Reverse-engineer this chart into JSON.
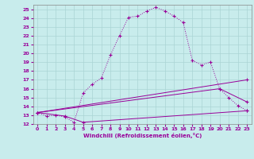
{
  "xlabel": "Windchill (Refroidissement éolien,°C)",
  "bg_color": "#c8ecec",
  "grid_color": "#aad4d4",
  "line_color": "#990099",
  "xlim": [
    -0.5,
    23.5
  ],
  "ylim": [
    12,
    25.5
  ],
  "xticks": [
    0,
    1,
    2,
    3,
    4,
    5,
    6,
    7,
    8,
    9,
    10,
    11,
    12,
    13,
    14,
    15,
    16,
    17,
    18,
    19,
    20,
    21,
    22,
    23
  ],
  "yticks": [
    12,
    13,
    14,
    15,
    16,
    17,
    18,
    19,
    20,
    21,
    22,
    23,
    24,
    25
  ],
  "line1_x": [
    0,
    1,
    2,
    3,
    4,
    5,
    6,
    7,
    8,
    9,
    10,
    11,
    12,
    13,
    14,
    15,
    16,
    17,
    18,
    19,
    20,
    21,
    22,
    23
  ],
  "line1_y": [
    13.3,
    12.9,
    13.0,
    12.8,
    12.2,
    15.5,
    16.5,
    17.2,
    19.8,
    22.0,
    24.1,
    24.2,
    24.8,
    25.2,
    24.8,
    24.2,
    23.5,
    19.2,
    18.7,
    19.0,
    16.0,
    15.0,
    14.1,
    13.5
  ],
  "line2_x": [
    0,
    3,
    5,
    23
  ],
  "line2_y": [
    13.3,
    12.9,
    12.2,
    13.5
  ],
  "line3_x": [
    0,
    23
  ],
  "line3_y": [
    13.3,
    17.0
  ],
  "line4_x": [
    0,
    20,
    23
  ],
  "line4_y": [
    13.3,
    16.0,
    14.5
  ]
}
